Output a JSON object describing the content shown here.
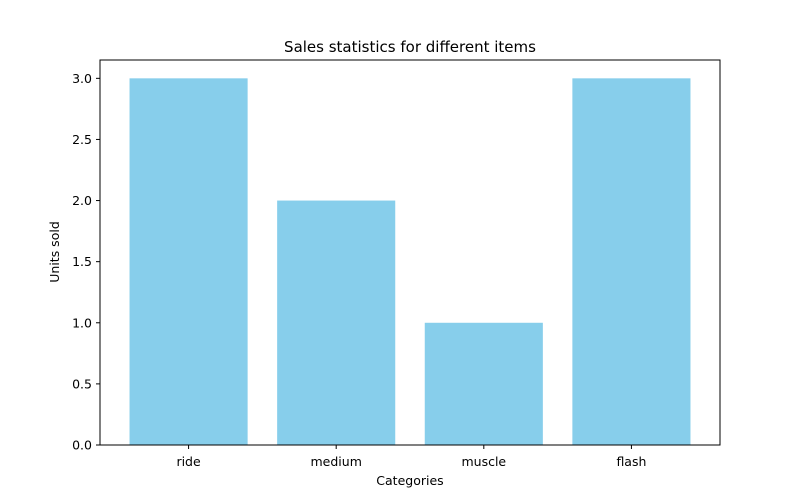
{
  "chart_data": {
    "type": "bar",
    "title": "Sales statistics for different items",
    "xlabel": "Categories",
    "ylabel": "Units sold",
    "categories": [
      "ride",
      "medium",
      "muscle",
      "flash"
    ],
    "values": [
      3,
      2,
      1,
      3
    ],
    "ylim": [
      0,
      3.15
    ],
    "yticks": [
      "0.0",
      "0.5",
      "1.0",
      "1.5",
      "2.0",
      "2.5",
      "3.0"
    ],
    "bar_color": "#87CEEB",
    "grid": false,
    "legend": "none"
  }
}
